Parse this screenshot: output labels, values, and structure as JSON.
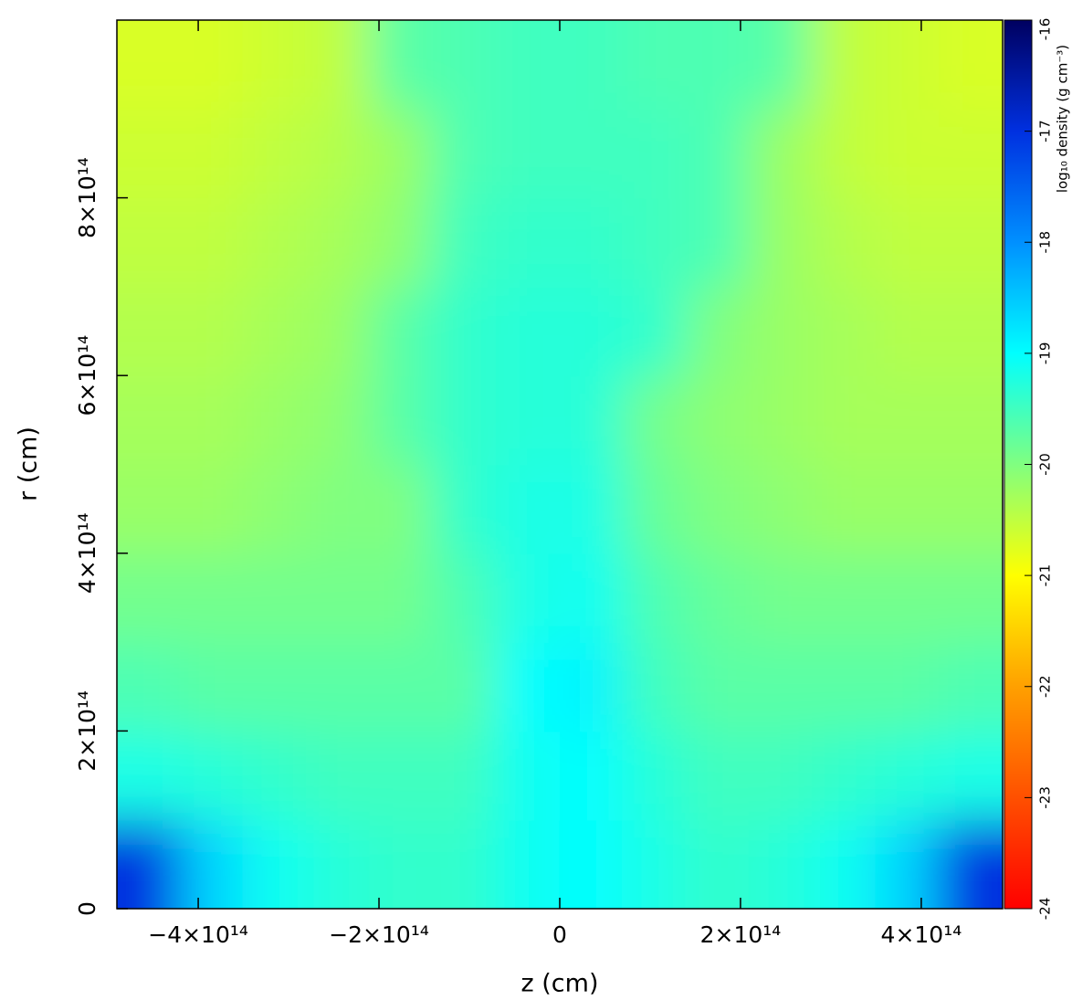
{
  "chart_data": {
    "type": "heatmap",
    "xlabel": "z (cm)",
    "ylabel": "r (cm)",
    "colorbar_label": "log₁₀ density (g cm⁻³)",
    "xlim": [
      -490000000000000.0,
      490000000000000.0
    ],
    "ylim": [
      0,
      1000000000000000.0
    ],
    "xticks": [
      {
        "value": -400000000000000.0,
        "label": "−4×10¹⁴"
      },
      {
        "value": -200000000000000.0,
        "label": "−2×10¹⁴"
      },
      0,
      {
        "value": 200000000000000.0,
        "label": "2×10¹⁴"
      },
      {
        "value": 400000000000000.0,
        "label": "4×10¹⁴"
      }
    ],
    "yticks": [
      0,
      {
        "value": 200000000000000.0,
        "label": "2×10¹⁴"
      },
      {
        "value": 400000000000000.0,
        "label": "4×10¹⁴"
      },
      {
        "value": 600000000000000.0,
        "label": "6×10¹⁴"
      },
      {
        "value": 800000000000000.0,
        "label": "8×10¹⁴"
      }
    ],
    "clim": [
      -24,
      -16
    ],
    "cticks": [
      -24,
      -23,
      -22,
      -21,
      -20,
      -19,
      -18,
      -17,
      -16
    ],
    "colormap": [
      "#ff0000",
      "#ff5000",
      "#ffa000",
      "#ffff00",
      "#80ff80",
      "#00ffff",
      "#0090ff",
      "#0030e0",
      "#000060"
    ],
    "x": [
      -455000000000000.0,
      -385000000000000.0,
      -315000000000000.0,
      -245000000000000.0,
      -175000000000000.0,
      -105000000000000.0,
      -35000000000000.0,
      35000000000000.0,
      105000000000000.0,
      175000000000000.0,
      245000000000000.0,
      315000000000000.0,
      385000000000000.0,
      455000000000000.0
    ],
    "y": [
      50000000000000.0,
      150000000000000.0,
      250000000000000.0,
      350000000000000.0,
      450000000000000.0,
      550000000000000.0,
      650000000000000.0,
      750000000000000.0,
      850000000000000.0,
      950000000000000.0
    ],
    "values": [
      [
        -17.0,
        -18.6,
        -19.1,
        -19.3,
        -19.4,
        -19.4,
        -19.1,
        -19.0,
        -19.2,
        -19.4,
        -19.3,
        -19.1,
        -18.6,
        -17.0
      ],
      [
        -19.2,
        -19.3,
        -19.4,
        -19.5,
        -19.5,
        -19.5,
        -19.1,
        -19.0,
        -19.3,
        -19.5,
        -19.5,
        -19.4,
        -19.3,
        -19.2
      ],
      [
        -19.6,
        -19.7,
        -19.7,
        -19.7,
        -19.7,
        -19.7,
        -19.0,
        -18.9,
        -19.5,
        -19.7,
        -19.7,
        -19.7,
        -19.7,
        -19.6
      ],
      [
        -19.9,
        -19.9,
        -19.9,
        -19.9,
        -19.9,
        -19.6,
        -19.2,
        -19.1,
        -19.6,
        -19.8,
        -19.9,
        -19.9,
        -19.9,
        -19.9
      ],
      [
        -20.2,
        -20.2,
        -20.1,
        -20.0,
        -20.0,
        -19.4,
        -19.2,
        -19.2,
        -19.8,
        -20.0,
        -20.1,
        -20.2,
        -20.2,
        -20.2
      ],
      [
        -20.3,
        -20.3,
        -20.2,
        -20.1,
        -19.7,
        -19.4,
        -19.3,
        -19.3,
        -19.9,
        -20.1,
        -20.2,
        -20.3,
        -20.3,
        -20.3
      ],
      [
        -20.4,
        -20.4,
        -20.3,
        -20.2,
        -19.7,
        -19.4,
        -19.3,
        -19.3,
        -19.4,
        -20.0,
        -20.2,
        -20.3,
        -20.4,
        -20.4
      ],
      [
        -20.5,
        -20.5,
        -20.4,
        -20.3,
        -20.1,
        -19.5,
        -19.4,
        -19.4,
        -19.5,
        -19.6,
        -20.2,
        -20.4,
        -20.5,
        -20.5
      ],
      [
        -20.6,
        -20.6,
        -20.5,
        -20.4,
        -20.2,
        -19.6,
        -19.5,
        -19.5,
        -19.5,
        -19.6,
        -20.2,
        -20.5,
        -20.6,
        -20.6
      ],
      [
        -20.7,
        -20.7,
        -20.6,
        -20.5,
        -19.7,
        -19.6,
        -19.5,
        -19.5,
        -19.6,
        -19.6,
        -19.7,
        -20.5,
        -20.6,
        -20.7
      ]
    ]
  }
}
